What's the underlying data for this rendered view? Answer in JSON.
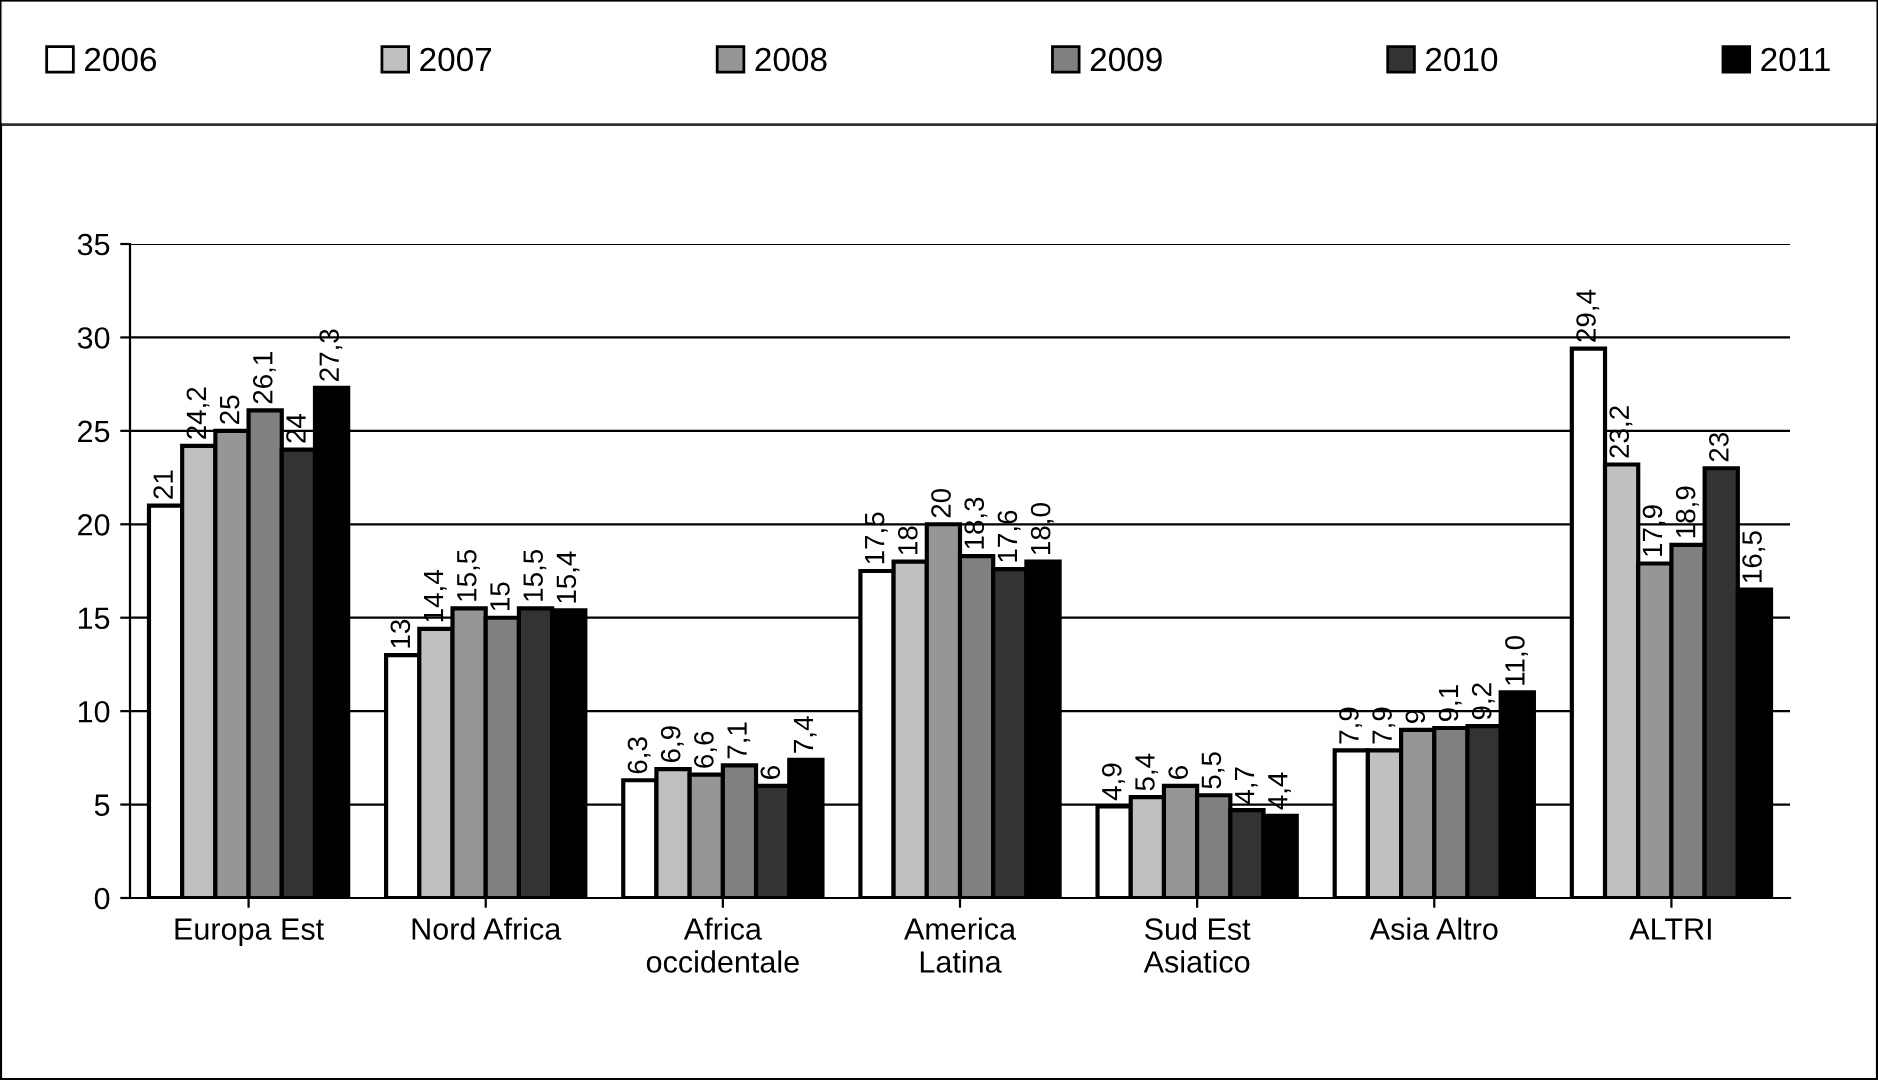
{
  "chart_data": {
    "type": "bar",
    "categories": [
      "Europa Est",
      "Nord Africa",
      "Africa\noccidentale",
      "America\nLatina",
      "Sud Est\nAsiatico",
      "Asia Altro",
      "ALTRI"
    ],
    "series": [
      {
        "name": "2006",
        "color": "#ffffff",
        "values": [
          21,
          13,
          6.3,
          17.5,
          4.9,
          7.9,
          29.4
        ],
        "value_labels": [
          "21",
          "13",
          "6,3",
          "17,5",
          "4,9",
          "7,9",
          "29,4"
        ]
      },
      {
        "name": "2007",
        "color": "#c0c0c0",
        "values": [
          24.2,
          14.4,
          6.9,
          18,
          5.4,
          7.9,
          23.2
        ],
        "value_labels": [
          "24,2",
          "14,4",
          "6,9",
          "18",
          "5,4",
          "7,9",
          "23,2"
        ]
      },
      {
        "name": "2008",
        "color": "#969696",
        "values": [
          25,
          15.5,
          6.6,
          20,
          6,
          9,
          17.9
        ],
        "value_labels": [
          "25",
          "15,5",
          "6,6",
          "20",
          "6",
          "9",
          "17,9"
        ]
      },
      {
        "name": "2009",
        "color": "#808080",
        "values": [
          26.1,
          15,
          7.1,
          18.3,
          5.5,
          9.1,
          18.9
        ],
        "value_labels": [
          "26,1",
          "15",
          "7,1",
          "18,3",
          "5,5",
          "9,1",
          "18,9"
        ]
      },
      {
        "name": "2010",
        "color": "#333333",
        "values": [
          24,
          15.5,
          6,
          17.6,
          4.7,
          9.2,
          23
        ],
        "value_labels": [
          "24",
          "15,5",
          "6",
          "17,6",
          "4,7",
          "9,2",
          "23"
        ]
      },
      {
        "name": "2011",
        "color": "#000000",
        "values": [
          27.3,
          15.4,
          7.4,
          18.0,
          4.4,
          11.0,
          16.5
        ],
        "value_labels": [
          "27,3",
          "15,4",
          "7,4",
          "18,0",
          "4,4",
          "11,0",
          "16,5"
        ]
      }
    ],
    "ylim": [
      0,
      35
    ],
    "yticks": [
      0,
      5,
      10,
      15,
      20,
      25,
      30,
      35
    ],
    "grid": "y",
    "legend": "top"
  }
}
